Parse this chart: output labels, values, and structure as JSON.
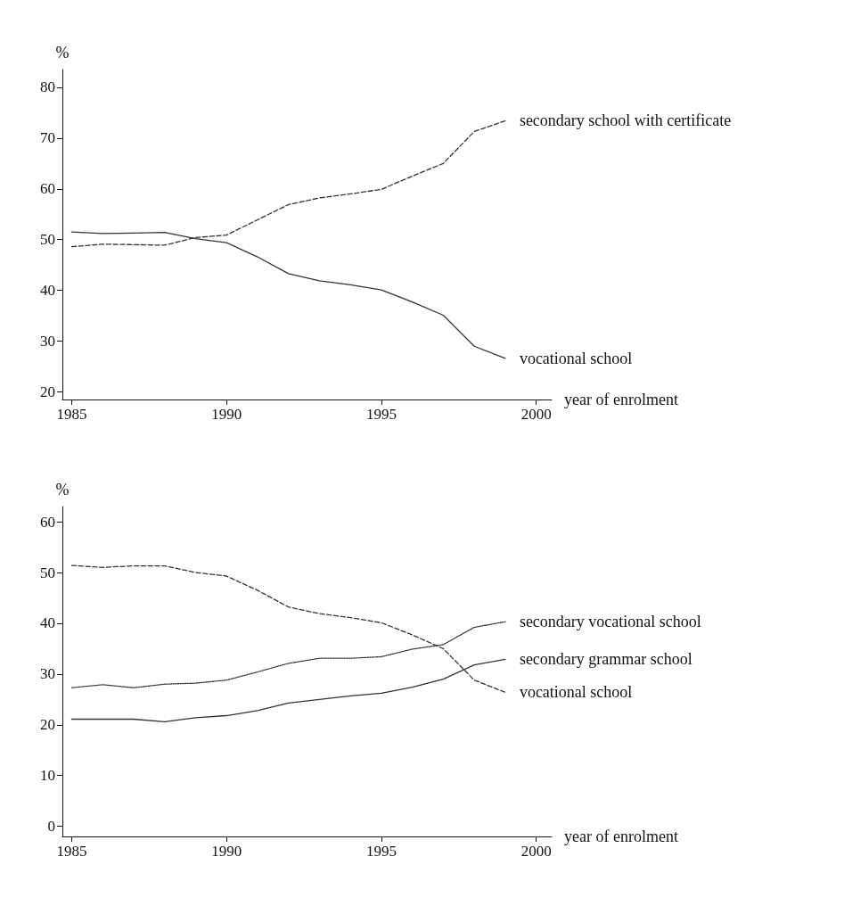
{
  "chart_data": [
    {
      "type": "line",
      "ylabel": "%",
      "xlabel": "year of enrolment",
      "x": [
        1985,
        1986,
        1987,
        1988,
        1989,
        1990,
        1991,
        1992,
        1993,
        1994,
        1995,
        1996,
        1997,
        1998,
        1999
      ],
      "xlim": [
        1984.7,
        2000.5
      ],
      "xticks": [
        1985,
        1990,
        1995,
        2000
      ],
      "ylim": [
        18.5,
        83.5
      ],
      "yticks": [
        20,
        30,
        40,
        50,
        60,
        70,
        80
      ],
      "grid": false,
      "legend": false,
      "marker": "none",
      "series": [
        {
          "name": "secondary school with certificate",
          "color": "#333333",
          "line_style": "dashed",
          "values": [
            48.6,
            49.1,
            49.0,
            48.9,
            50.4,
            50.9,
            53.9,
            56.9,
            58.2,
            59.0,
            59.9,
            62.5,
            65.0,
            71.3,
            73.4
          ]
        },
        {
          "name": "vocational school",
          "color": "#333333",
          "line_style": "solid",
          "values": [
            51.5,
            51.2,
            51.3,
            51.4,
            50.2,
            49.4,
            46.6,
            43.3,
            41.9,
            41.1,
            40.1,
            37.7,
            35.1,
            29.0,
            26.6
          ]
        }
      ]
    },
    {
      "type": "line",
      "ylabel": "%",
      "xlabel": "year of enrolment",
      "x": [
        1985,
        1986,
        1987,
        1988,
        1989,
        1990,
        1991,
        1992,
        1993,
        1994,
        1995,
        1996,
        1997,
        1998,
        1999
      ],
      "xlim": [
        1984.7,
        2000.5
      ],
      "xticks": [
        1985,
        1990,
        1995,
        2000
      ],
      "ylim": [
        -2,
        63
      ],
      "yticks": [
        0,
        10,
        20,
        30,
        40,
        50,
        60
      ],
      "grid": false,
      "legend": false,
      "marker": "none",
      "series": [
        {
          "name": "secondary vocational school",
          "color": "#333333",
          "line_style": "dotted",
          "values": [
            27.3,
            27.9,
            27.3,
            28.0,
            28.2,
            28.8,
            30.4,
            32.1,
            33.1,
            33.1,
            33.4,
            34.9,
            35.8,
            39.2,
            40.3
          ]
        },
        {
          "name": "secondary grammar school",
          "color": "#333333",
          "line_style": "solid",
          "values": [
            21.1,
            21.1,
            21.1,
            20.6,
            21.4,
            21.8,
            22.8,
            24.3,
            25.0,
            25.7,
            26.2,
            27.4,
            29.0,
            31.8,
            32.9
          ]
        },
        {
          "name": "vocational school",
          "color": "#333333",
          "line_style": "dashed",
          "values": [
            51.4,
            51.0,
            51.3,
            51.3,
            50.0,
            49.3,
            46.5,
            43.2,
            41.9,
            41.1,
            40.1,
            37.7,
            35.0,
            28.8,
            26.4
          ]
        }
      ]
    }
  ]
}
